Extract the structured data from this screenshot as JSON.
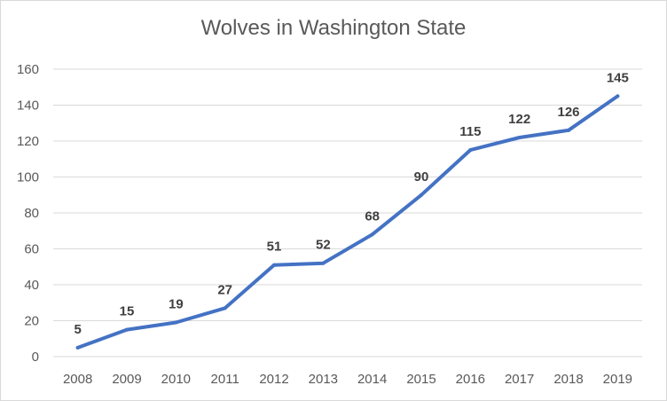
{
  "colors": {
    "line": "#4472c4",
    "grid": "#d9d9d9",
    "text": "#595959",
    "label": "#404040"
  },
  "chart_data": {
    "type": "line",
    "title": "Wolves in Washington State",
    "xlabel": "",
    "ylabel": "",
    "categories": [
      "2008",
      "2009",
      "2010",
      "2011",
      "2012",
      "2013",
      "2014",
      "2015",
      "2016",
      "2017",
      "2018",
      "2019"
    ],
    "series": [
      {
        "values": [
          5,
          15,
          19,
          27,
          51,
          52,
          68,
          90,
          115,
          122,
          126,
          145
        ]
      }
    ],
    "ylim": [
      0,
      160
    ],
    "yticks": [
      "0",
      "20",
      "40",
      "60",
      "80",
      "100",
      "120",
      "140",
      "160"
    ],
    "data_labels": [
      "5",
      "15",
      "19",
      "27",
      "51",
      "52",
      "68",
      "90",
      "115",
      "122",
      "126",
      "145"
    ],
    "grid": true,
    "legend": "none"
  }
}
